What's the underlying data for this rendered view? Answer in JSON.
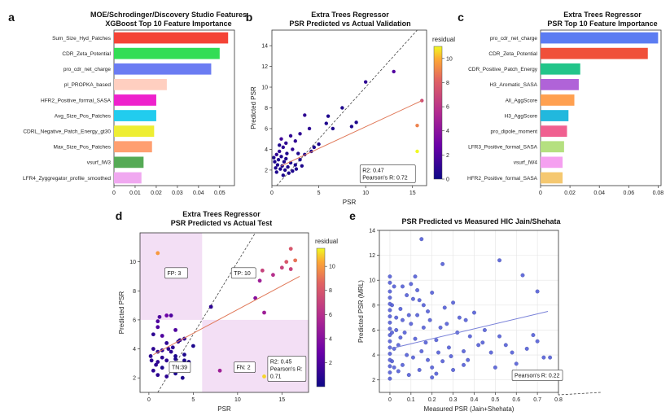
{
  "chart_data": [
    {
      "panel": "a",
      "type": "barh",
      "title": "MOE/Schrodinger/Discovery Studio Features\nXGBoost Top 10 Feature Importance",
      "xlim": [
        0,
        0.057
      ],
      "xticks": [
        0,
        0.01,
        0.02,
        0.03,
        0.04,
        0.05
      ],
      "categories": [
        "Sum_Size_Hyd_Patches",
        "CDR_Zeta_Potential",
        "pro_cdr_net_charge",
        "pl_PROPKA_based",
        "HFR2_Positive_formal_SASA",
        "Avg_Size_Pos_Patches",
        "CDRL_Negative_Patch_Energy_gt30",
        "Max_Size_Pos_Patches",
        "vsurf_IW3",
        "LFR4_Zyggregator_profile_smoothed"
      ],
      "values": [
        0.054,
        0.05,
        0.046,
        0.025,
        0.02,
        0.02,
        0.019,
        0.018,
        0.014,
        0.013
      ],
      "colors": [
        "#f44336",
        "#33dd55",
        "#6b7cf2",
        "#ffcfc0",
        "#ee22cc",
        "#22ccee",
        "#eeee33",
        "#ff9f70",
        "#55aa55",
        "#f0a8f0"
      ]
    },
    {
      "panel": "b",
      "type": "scatter",
      "title": "Extra Trees Regressor\nPSR Predicted vs Actual Validation",
      "xlabel": "PSR",
      "ylabel": "Predicted PSR",
      "xlim": [
        0,
        16.5
      ],
      "ylim": [
        0.5,
        15.5
      ],
      "xticks": [
        0,
        5,
        10,
        15
      ],
      "yticks": [
        2,
        4,
        6,
        8,
        10,
        12,
        14
      ],
      "colorbar": {
        "label": "residual",
        "ticks": [
          0,
          2,
          4,
          6,
          8,
          10
        ],
        "range": [
          0,
          11
        ]
      },
      "fit_line": [
        [
          1,
          2.4
        ],
        [
          16,
          8.7
        ]
      ],
      "stats": [
        "R2: 0.47",
        "Pearson's R: 0.72"
      ],
      "points": [
        [
          15.5,
          3.8,
          11
        ],
        [
          15.5,
          6.3,
          9
        ],
        [
          16,
          8.7,
          7
        ],
        [
          13,
          11.5,
          2
        ],
        [
          10,
          10.5,
          1
        ],
        [
          7.5,
          8,
          0.5
        ],
        [
          6,
          7.2,
          0.5
        ],
        [
          5.8,
          6.5,
          0.5
        ],
        [
          6.5,
          6,
          0.5
        ],
        [
          8.5,
          6.2,
          0.5
        ],
        [
          9,
          6.6,
          0.5
        ],
        [
          3.5,
          7.3,
          1
        ],
        [
          4,
          6,
          1
        ],
        [
          3,
          5.5,
          1
        ],
        [
          2,
          5.3,
          1
        ],
        [
          2.5,
          4.8,
          1
        ],
        [
          1,
          5,
          1.5
        ],
        [
          1.5,
          4.6,
          1
        ],
        [
          1.2,
          4.2,
          1
        ],
        [
          2.2,
          4,
          1
        ],
        [
          0.8,
          3.8,
          1
        ],
        [
          0.5,
          3.5,
          1
        ],
        [
          1,
          3.3,
          0.5
        ],
        [
          1.5,
          3.1,
          0.5
        ],
        [
          0.7,
          3,
          0.5
        ],
        [
          1.3,
          2.8,
          0.5
        ],
        [
          2,
          2.7,
          0.5
        ],
        [
          0.6,
          2.5,
          0.5
        ],
        [
          1.1,
          2.4,
          0.5
        ],
        [
          1.7,
          2.3,
          0.5
        ],
        [
          0.9,
          2.1,
          0.5
        ],
        [
          1.4,
          2,
          0.5
        ],
        [
          2.2,
          1.9,
          0.5
        ],
        [
          0.5,
          1.8,
          0.5
        ],
        [
          1.8,
          1.7,
          0.5
        ],
        [
          0.4,
          2.2,
          0.5
        ],
        [
          2.5,
          2.5,
          0.5
        ],
        [
          3,
          3,
          0.5
        ],
        [
          3.5,
          3.5,
          0.5
        ],
        [
          4.5,
          4.2,
          0.5
        ],
        [
          5,
          4.5,
          0.5
        ],
        [
          4.2,
          3.8,
          0.5
        ],
        [
          2.8,
          3.6,
          0.5
        ],
        [
          1.2,
          1.5,
          0.5
        ],
        [
          0.3,
          2.8,
          0.5
        ],
        [
          0.2,
          3.2,
          0.5
        ],
        [
          2.6,
          2.1,
          0.5
        ],
        [
          3.2,
          2.4,
          0.5
        ],
        [
          1.6,
          3.6,
          0.5
        ],
        [
          0.8,
          4.4,
          0.5
        ]
      ]
    },
    {
      "panel": "c",
      "type": "barh",
      "title": "Extra Trees Regressor\nPSR Top 10 Feature Importance",
      "xlim": [
        0,
        0.082
      ],
      "xticks": [
        0,
        0.02,
        0.04,
        0.06,
        0.08
      ],
      "categories": [
        "pro_cdr_net_charge",
        "CDR_Zeta_Potential",
        "CDR_Positive_Patch_Energy",
        "H3_Aromatic_SASA",
        "All_AggScore",
        "H3_AggScore",
        "pro_dipole_moment",
        "LFR3_Positive_formal_SASA",
        "vsurf_IW4",
        "HFR2_Positive_formal_SASA"
      ],
      "values": [
        0.08,
        0.073,
        0.027,
        0.026,
        0.023,
        0.019,
        0.018,
        0.016,
        0.015,
        0.015
      ],
      "colors": [
        "#5b7cf2",
        "#f0503a",
        "#22c58a",
        "#b063d8",
        "#ffa050",
        "#22b8dd",
        "#f06090",
        "#b5e080",
        "#f5a0f0",
        "#f5c870"
      ]
    },
    {
      "panel": "d",
      "type": "scatter",
      "title": "Extra Trees Regressor\nPSR Predicted vs Actual Test",
      "xlabel": "PSR",
      "ylabel": "Predicted PSR",
      "xlim": [
        -1,
        18
      ],
      "ylim": [
        1,
        12
      ],
      "xticks": [
        0,
        5,
        10,
        15
      ],
      "yticks": [
        2,
        4,
        6,
        8,
        10
      ],
      "colorbar": {
        "label": "residual",
        "ticks": [
          2,
          4,
          6,
          8,
          10
        ],
        "range": [
          0,
          11.5
        ]
      },
      "threshold_x": 6,
      "threshold_y": 6,
      "fit_line": [
        [
          0.5,
          3.6
        ],
        [
          17,
          9
        ]
      ],
      "quadrants": [
        "FP: 3",
        "TP: 10",
        "TN:39",
        "FN: 2"
      ],
      "stats": [
        "R2: 0.45",
        "Pearson's R:",
        "0.71"
      ],
      "points": [
        [
          1,
          10.6,
          10
        ],
        [
          13,
          2.1,
          11
        ],
        [
          16.5,
          10.1,
          9
        ],
        [
          16,
          10.9,
          8
        ],
        [
          15.5,
          10,
          8
        ],
        [
          16,
          9.5,
          7
        ],
        [
          15,
          9.6,
          7
        ],
        [
          14,
          9.1,
          6
        ],
        [
          12.8,
          9.4,
          7
        ],
        [
          12.5,
          8.7,
          5
        ],
        [
          12,
          7.5,
          4
        ],
        [
          13,
          6.5,
          5
        ],
        [
          7,
          6.9,
          1
        ],
        [
          8,
          2.5,
          5
        ],
        [
          1,
          5.9,
          2
        ],
        [
          2,
          6.3,
          3
        ],
        [
          2.5,
          6.3,
          2
        ],
        [
          1,
          5.5,
          2
        ],
        [
          0.5,
          5,
          1
        ],
        [
          1.5,
          4.9,
          2
        ],
        [
          3,
          5.3,
          2
        ],
        [
          3.5,
          4.6,
          1
        ],
        [
          4,
          4.7,
          1
        ],
        [
          2,
          4.4,
          1
        ],
        [
          0.5,
          4,
          1
        ],
        [
          1,
          3.8,
          1
        ],
        [
          1.5,
          3.9,
          1
        ],
        [
          2.5,
          3.8,
          1
        ],
        [
          3,
          3.5,
          0.5
        ],
        [
          0.3,
          3.2,
          1
        ],
        [
          1,
          3.1,
          1
        ],
        [
          2,
          3.2,
          1
        ],
        [
          3,
          3.3,
          0.5
        ],
        [
          4,
          3.6,
          0.5
        ],
        [
          4.5,
          3.1,
          0.5
        ],
        [
          2.8,
          2.8,
          0.5
        ],
        [
          1.5,
          2.7,
          0.5
        ],
        [
          0.5,
          2.5,
          1
        ],
        [
          1,
          2.2,
          1
        ],
        [
          2,
          2.1,
          1
        ],
        [
          3,
          2.3,
          0.5
        ],
        [
          3.5,
          2.6,
          0.5
        ],
        [
          3.8,
          2.0,
          0.5
        ],
        [
          4,
          3.2,
          0.5
        ],
        [
          5,
          4.2,
          0.5
        ],
        [
          0.2,
          3.5,
          1
        ],
        [
          1.5,
          3.4,
          1
        ],
        [
          2.2,
          4.0,
          1
        ],
        [
          0.8,
          2.9,
          1
        ],
        [
          1.2,
          6.2,
          2
        ],
        [
          2.7,
          4.1,
          1
        ],
        [
          3.3,
          4.5,
          1
        ]
      ]
    },
    {
      "panel": "e",
      "type": "scatter",
      "title": "PSR Predicted vs Measured HIC Jain/Shehata",
      "xlabel": "Measured PSR (Jain+Shehata)",
      "ylabel": "Predicted PSR (MRL)",
      "xlim": [
        -0.05,
        0.8
      ],
      "ylim": [
        1,
        14
      ],
      "xticks": [
        0,
        0.1,
        0.2,
        0.3,
        0.4,
        0.5,
        0.6,
        0.7,
        0.8
      ],
      "yticks": [
        2,
        4,
        6,
        8,
        10,
        12,
        14
      ],
      "fit_line": [
        [
          0,
          4.5
        ],
        [
          0.75,
          7.5
        ]
      ],
      "stats": [
        "Pearson's R: 0.22"
      ],
      "points": [
        [
          0.15,
          13.3
        ],
        [
          0.52,
          11.6
        ],
        [
          0.25,
          11.3
        ],
        [
          0.63,
          10.4
        ],
        [
          0.7,
          9.1
        ],
        [
          0.7,
          5.1
        ],
        [
          0.73,
          3.8
        ],
        [
          0.65,
          4.5
        ],
        [
          0.6,
          3.3
        ],
        [
          0.55,
          4.8
        ],
        [
          0.52,
          5.5
        ],
        [
          0.48,
          4.2
        ],
        [
          0.45,
          6
        ],
        [
          0.42,
          4.8
        ],
        [
          0.38,
          5.5
        ],
        [
          0.35,
          3.2
        ],
        [
          0.4,
          7.4
        ],
        [
          0.3,
          8.2
        ],
        [
          0.27,
          6.5
        ],
        [
          0.28,
          4.6
        ],
        [
          0.25,
          3.5
        ],
        [
          0.22,
          5.2
        ],
        [
          0.2,
          9
        ],
        [
          0.18,
          7.5
        ],
        [
          0.16,
          6.2
        ],
        [
          0.12,
          10.3
        ],
        [
          0.14,
          8.4
        ],
        [
          0.1,
          9.7
        ],
        [
          0.08,
          8.8
        ],
        [
          0.06,
          9.5
        ],
        [
          0.05,
          7.7
        ],
        [
          0.1,
          6.5
        ],
        [
          0.12,
          5.3
        ],
        [
          0.15,
          4.3
        ],
        [
          0.18,
          3.6
        ],
        [
          0.2,
          3
        ],
        [
          0.22,
          2.5
        ],
        [
          0.3,
          2.8
        ],
        [
          0.35,
          4.3
        ],
        [
          0.08,
          4
        ],
        [
          0.06,
          3.2
        ],
        [
          0.05,
          5.4
        ],
        [
          0.04,
          2.7
        ],
        [
          0.03,
          6
        ],
        [
          0.02,
          4.5
        ],
        [
          0.01,
          8
        ],
        [
          0.01,
          3.5
        ],
        [
          0.02,
          9.5
        ],
        [
          0.03,
          7
        ],
        [
          0,
          10.3
        ],
        [
          0,
          9.8
        ],
        [
          0,
          9.1
        ],
        [
          0,
          8.6
        ],
        [
          0,
          8.1
        ],
        [
          0,
          7.6
        ],
        [
          0,
          7.1
        ],
        [
          0,
          6.6
        ],
        [
          0,
          6.1
        ],
        [
          0,
          5.6
        ],
        [
          0,
          5.1
        ],
        [
          0,
          4.6
        ],
        [
          0,
          4.1
        ],
        [
          0,
          3.6
        ],
        [
          0,
          3.1
        ],
        [
          0,
          2.6
        ],
        [
          0,
          2.1
        ],
        [
          0.01,
          5.8
        ],
        [
          0.02,
          3
        ],
        [
          0.04,
          4.8
        ],
        [
          0.06,
          6.8
        ],
        [
          0.09,
          2.4
        ],
        [
          0.11,
          3.8
        ],
        [
          0.13,
          7.2
        ],
        [
          0.17,
          5
        ],
        [
          0.24,
          6.2
        ],
        [
          0.26,
          7.8
        ],
        [
          0.32,
          5.8
        ],
        [
          0.36,
          6.8
        ],
        [
          0.2,
          2.2
        ],
        [
          0.14,
          2.8
        ],
        [
          0.07,
          5.8
        ],
        [
          0.09,
          7.2
        ],
        [
          0.11,
          8.5
        ],
        [
          0.13,
          9.2
        ],
        [
          0.16,
          8
        ],
        [
          0.19,
          6.8
        ],
        [
          0.23,
          4.2
        ],
        [
          0.29,
          3.9
        ],
        [
          0.33,
          7
        ],
        [
          0.37,
          3.6
        ],
        [
          0.44,
          5
        ],
        [
          0.5,
          3
        ],
        [
          0.58,
          4.2
        ],
        [
          0.68,
          5.6
        ],
        [
          0.76,
          3.8
        ]
      ]
    }
  ],
  "panel_labels": [
    "a",
    "b",
    "c",
    "d",
    "e"
  ]
}
